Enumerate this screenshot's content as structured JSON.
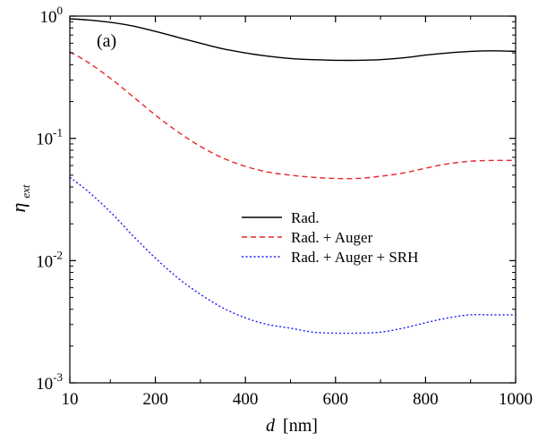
{
  "chart_data": {
    "type": "line",
    "panel_label": "(a)",
    "xlabel": "d",
    "xlabel_unit": "[nm]",
    "ylabel_base": "η",
    "ylabel_sub": "ext",
    "x_scale": "linear",
    "y_scale": "log",
    "xlim": [
      10,
      1000
    ],
    "ylim": [
      0.001,
      1
    ],
    "x_ticks": [
      10,
      200,
      400,
      600,
      800,
      1000
    ],
    "y_ticks": [
      {
        "value": 1,
        "base": "10",
        "exp": "0"
      },
      {
        "value": 0.1,
        "base": "10",
        "exp": "-1"
      },
      {
        "value": 0.01,
        "base": "10",
        "exp": "-2"
      },
      {
        "value": 0.001,
        "base": "10",
        "exp": "-3"
      }
    ],
    "legend_position": "center-right",
    "series": [
      {
        "name": "Rad.",
        "color": "#000000",
        "style": "solid",
        "x": [
          10,
          50,
          100,
          150,
          200,
          250,
          300,
          350,
          400,
          450,
          500,
          550,
          600,
          650,
          700,
          750,
          800,
          850,
          900,
          950,
          1000
        ],
        "y": [
          0.95,
          0.93,
          0.89,
          0.83,
          0.75,
          0.67,
          0.6,
          0.54,
          0.5,
          0.47,
          0.45,
          0.44,
          0.435,
          0.435,
          0.44,
          0.455,
          0.48,
          0.5,
          0.515,
          0.52,
          0.515
        ]
      },
      {
        "name": "Rad. + Auger",
        "color": "#e8252b",
        "style": "dashed",
        "x": [
          10,
          50,
          100,
          150,
          200,
          250,
          300,
          350,
          400,
          450,
          500,
          550,
          600,
          650,
          700,
          750,
          800,
          850,
          900,
          950,
          1000
        ],
        "y": [
          0.51,
          0.42,
          0.31,
          0.22,
          0.155,
          0.113,
          0.086,
          0.069,
          0.059,
          0.053,
          0.05,
          0.048,
          0.047,
          0.047,
          0.049,
          0.052,
          0.057,
          0.062,
          0.065,
          0.066,
          0.066
        ]
      },
      {
        "name": "Rad. + Auger + SRH",
        "color": "#1a1aff",
        "style": "dotted",
        "x": [
          10,
          50,
          100,
          150,
          200,
          250,
          300,
          350,
          400,
          450,
          500,
          550,
          600,
          650,
          700,
          750,
          800,
          850,
          900,
          950,
          1000
        ],
        "y": [
          0.048,
          0.037,
          0.025,
          0.016,
          0.0105,
          0.0072,
          0.0053,
          0.0041,
          0.0034,
          0.003,
          0.0028,
          0.0026,
          0.00255,
          0.00255,
          0.0026,
          0.0028,
          0.0031,
          0.0034,
          0.0036,
          0.0036,
          0.0036
        ]
      }
    ]
  }
}
